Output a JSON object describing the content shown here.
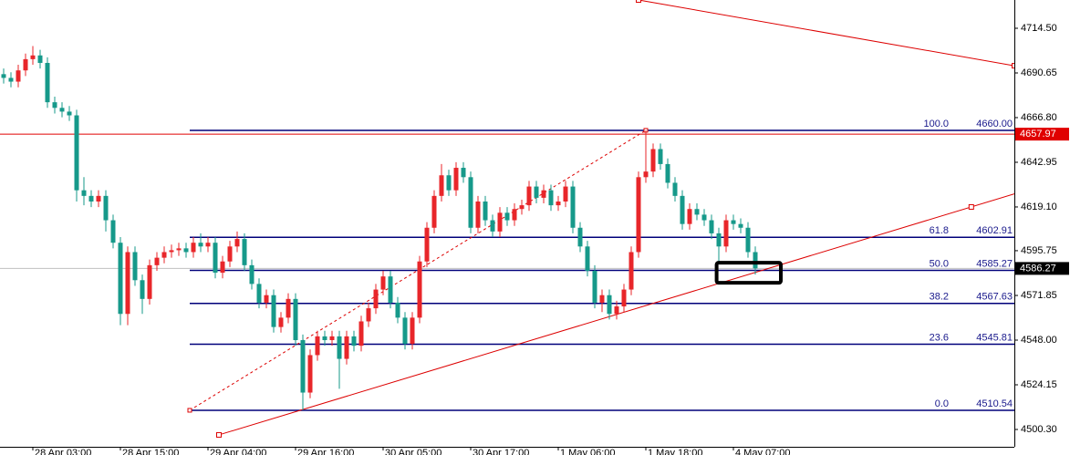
{
  "chart_data": {
    "type": "candlestick",
    "up_color": "#e8262a",
    "down_color": "#16998a",
    "categories": [
      null,
      null,
      null,
      null,
      "28 Apr 03:00",
      null,
      null,
      null,
      null,
      null,
      null,
      null,
      null,
      null,
      null,
      null,
      "28 Apr 15:00",
      null,
      null,
      null,
      null,
      null,
      null,
      null,
      null,
      null,
      null,
      null,
      "29 Apr 04:00",
      null,
      null,
      null,
      null,
      null,
      null,
      null,
      null,
      null,
      null,
      null,
      "29 Apr 16:00",
      null,
      null,
      null,
      null,
      null,
      null,
      null,
      null,
      null,
      null,
      null,
      "30 Apr 05:00",
      null,
      null,
      null,
      null,
      null,
      null,
      null,
      null,
      null,
      null,
      null,
      "30 Apr 17:00",
      null,
      null,
      null,
      null,
      null,
      null,
      null,
      null,
      null,
      null,
      null,
      "1 May 06:00",
      null,
      null,
      null,
      null,
      null,
      null,
      null,
      null,
      null,
      null,
      null,
      "1 May 18:00",
      null,
      null,
      null,
      null,
      null,
      null,
      null,
      null,
      null,
      null,
      null,
      "4 May 07:00",
      null,
      null,
      null
    ],
    "candles": {
      "open": [
        4690,
        4688,
        4686,
        4692,
        4698,
        4700,
        4696,
        4675,
        4672,
        4670,
        4668,
        4628,
        4625,
        4622,
        4625,
        4612,
        4600,
        4562,
        4595,
        4580,
        4570,
        4588,
        4592,
        4595,
        4596,
        4597,
        4595,
        4600,
        4598,
        4600,
        4584,
        4590,
        4598,
        4602,
        4588,
        4578,
        4568,
        4572,
        4555,
        4560,
        4570,
        4548,
        4520,
        4540,
        4550,
        4548,
        4550,
        4538,
        4550,
        4545,
        4558,
        4565,
        4575,
        4582,
        4568,
        4560,
        4546,
        4560,
        4590,
        4608,
        4625,
        4636,
        4628,
        4640,
        4635,
        4608,
        4622,
        4612,
        4606,
        4616,
        4612,
        4618,
        4620,
        4630,
        4624,
        4628,
        4620,
        4622,
        4630,
        4608,
        4598,
        4585,
        4568,
        4572,
        4562,
        4566,
        4575,
        4595,
        4635,
        4638,
        4650,
        4642,
        4632,
        4625,
        4610,
        4618,
        4615,
        4612,
        4605,
        4598,
        4612,
        4610,
        4608,
        4595
      ],
      "high": [
        4693,
        4691,
        4695,
        4701,
        4705,
        4703,
        4699,
        4678,
        4675,
        4673,
        4671,
        4635,
        4628,
        4628,
        4628,
        4615,
        4603,
        4598,
        4598,
        4583,
        4591,
        4595,
        4598,
        4599,
        4600,
        4600,
        4603,
        4605,
        4603,
        4603,
        4593,
        4601,
        4606,
        4605,
        4591,
        4581,
        4575,
        4575,
        4563,
        4573,
        4573,
        4551,
        4543,
        4553,
        4553,
        4553,
        4553,
        4553,
        4553,
        4561,
        4568,
        4578,
        4585,
        4585,
        4571,
        4563,
        4563,
        4593,
        4611,
        4628,
        4642,
        4639,
        4643,
        4643,
        4638,
        4625,
        4625,
        4615,
        4619,
        4619,
        4621,
        4623,
        4633,
        4633,
        4631,
        4631,
        4625,
        4633,
        4633,
        4611,
        4601,
        4588,
        4575,
        4575,
        4569,
        4578,
        4598,
        4638,
        4660,
        4653,
        4653,
        4645,
        4635,
        4628,
        4621,
        4621,
        4618,
        4615,
        4608,
        4615,
        4615,
        4613,
        4611,
        4598
      ],
      "low": [
        4685,
        4683,
        4683,
        4689,
        4695,
        4693,
        4672,
        4669,
        4667,
        4665,
        4622,
        4620,
        4619,
        4619,
        4606,
        4597,
        4556,
        4556,
        4577,
        4562,
        4567,
        4585,
        4589,
        4592,
        4593,
        4592,
        4592,
        4595,
        4595,
        4581,
        4581,
        4587,
        4595,
        4585,
        4575,
        4565,
        4565,
        4552,
        4552,
        4557,
        4545,
        4510.54,
        4517,
        4537,
        4545,
        4545,
        4522,
        4535,
        4542,
        4542,
        4555,
        4562,
        4572,
        4565,
        4557,
        4543,
        4543,
        4557,
        4587,
        4605,
        4622,
        4625,
        4625,
        4632,
        4605,
        4605,
        4609,
        4603,
        4603,
        4609,
        4609,
        4615,
        4617,
        4621,
        4621,
        4617,
        4617,
        4619,
        4605,
        4595,
        4582,
        4565,
        4563,
        4559,
        4559,
        4563,
        4572,
        4592,
        4632,
        4635,
        4639,
        4629,
        4622,
        4607,
        4607,
        4612,
        4609,
        4602,
        4590,
        4595,
        4607,
        4605,
        4592,
        4583
      ],
      "close": [
        4688,
        4686,
        4692,
        4698,
        4700,
        4696,
        4675,
        4672,
        4670,
        4668,
        4628,
        4625,
        4622,
        4625,
        4612,
        4600,
        4562,
        4595,
        4580,
        4570,
        4588,
        4592,
        4595,
        4596,
        4597,
        4595,
        4600,
        4598,
        4600,
        4584,
        4590,
        4598,
        4602,
        4588,
        4578,
        4568,
        4572,
        4555,
        4560,
        4570,
        4548,
        4520,
        4540,
        4550,
        4548,
        4550,
        4538,
        4550,
        4545,
        4558,
        4565,
        4575,
        4582,
        4568,
        4560,
        4546,
        4560,
        4590,
        4608,
        4625,
        4636,
        4628,
        4640,
        4635,
        4608,
        4622,
        4612,
        4606,
        4616,
        4612,
        4618,
        4620,
        4630,
        4624,
        4628,
        4620,
        4622,
        4630,
        4608,
        4598,
        4585,
        4568,
        4572,
        4562,
        4566,
        4575,
        4595,
        4635,
        4638,
        4650,
        4642,
        4632,
        4625,
        4610,
        4618,
        4615,
        4612,
        4605,
        4598,
        4612,
        4610,
        4608,
        4595,
        4586.27
      ]
    },
    "ylim": [
      4491.05,
      4729.59
    ],
    "yticks": [
      {
        "value": 4714.5,
        "label": "4714.50"
      },
      4690.65,
      {
        "value": 4666.8,
        "label": "4666.80"
      },
      4642.95,
      {
        "value": 4619.1,
        "label": "4619.10"
      },
      4595.75,
      4571.85,
      {
        "value": 4548,
        "label": "4548.00"
      },
      4524.15,
      {
        "value": 4500.3,
        "label": "4500.30"
      }
    ],
    "fibonacci": {
      "color": "#00007a",
      "start_index": 25.5,
      "end_index": 88,
      "levels": [
        {
          "ratio": {
            "value": 100,
            "label": "100.0"
          },
          "price": {
            "value": 4660,
            "label": "4660.00"
          }
        },
        {
          "ratio": 61.8,
          "price": 4602.91
        },
        {
          "ratio": {
            "value": 50,
            "label": "50.0"
          },
          "price": 4585.27
        },
        {
          "ratio": 38.2,
          "price": 4567.63
        },
        {
          "ratio": 23.6,
          "price": 4545.81
        },
        {
          "ratio": {
            "value": 0,
            "label": "0.0"
          },
          "price": 4510.54
        }
      ]
    },
    "hline": {
      "value": 4657.97,
      "color": "#e00000"
    },
    "trendlines": [
      {
        "start": [
          29.5,
          4497.4
        ],
        "end": [
          132.6,
          4619.1
        ],
        "color": "#dd0000"
      },
      {
        "start": [
          87,
          4729.6
        ],
        "end": [
          138.5,
          4694.5
        ],
        "color": "#dd0000"
      }
    ],
    "highlight_box": {
      "x": [
        97.7,
        106.5
      ],
      "y": [
        4578.6,
        4589.3
      ]
    }
  }
}
